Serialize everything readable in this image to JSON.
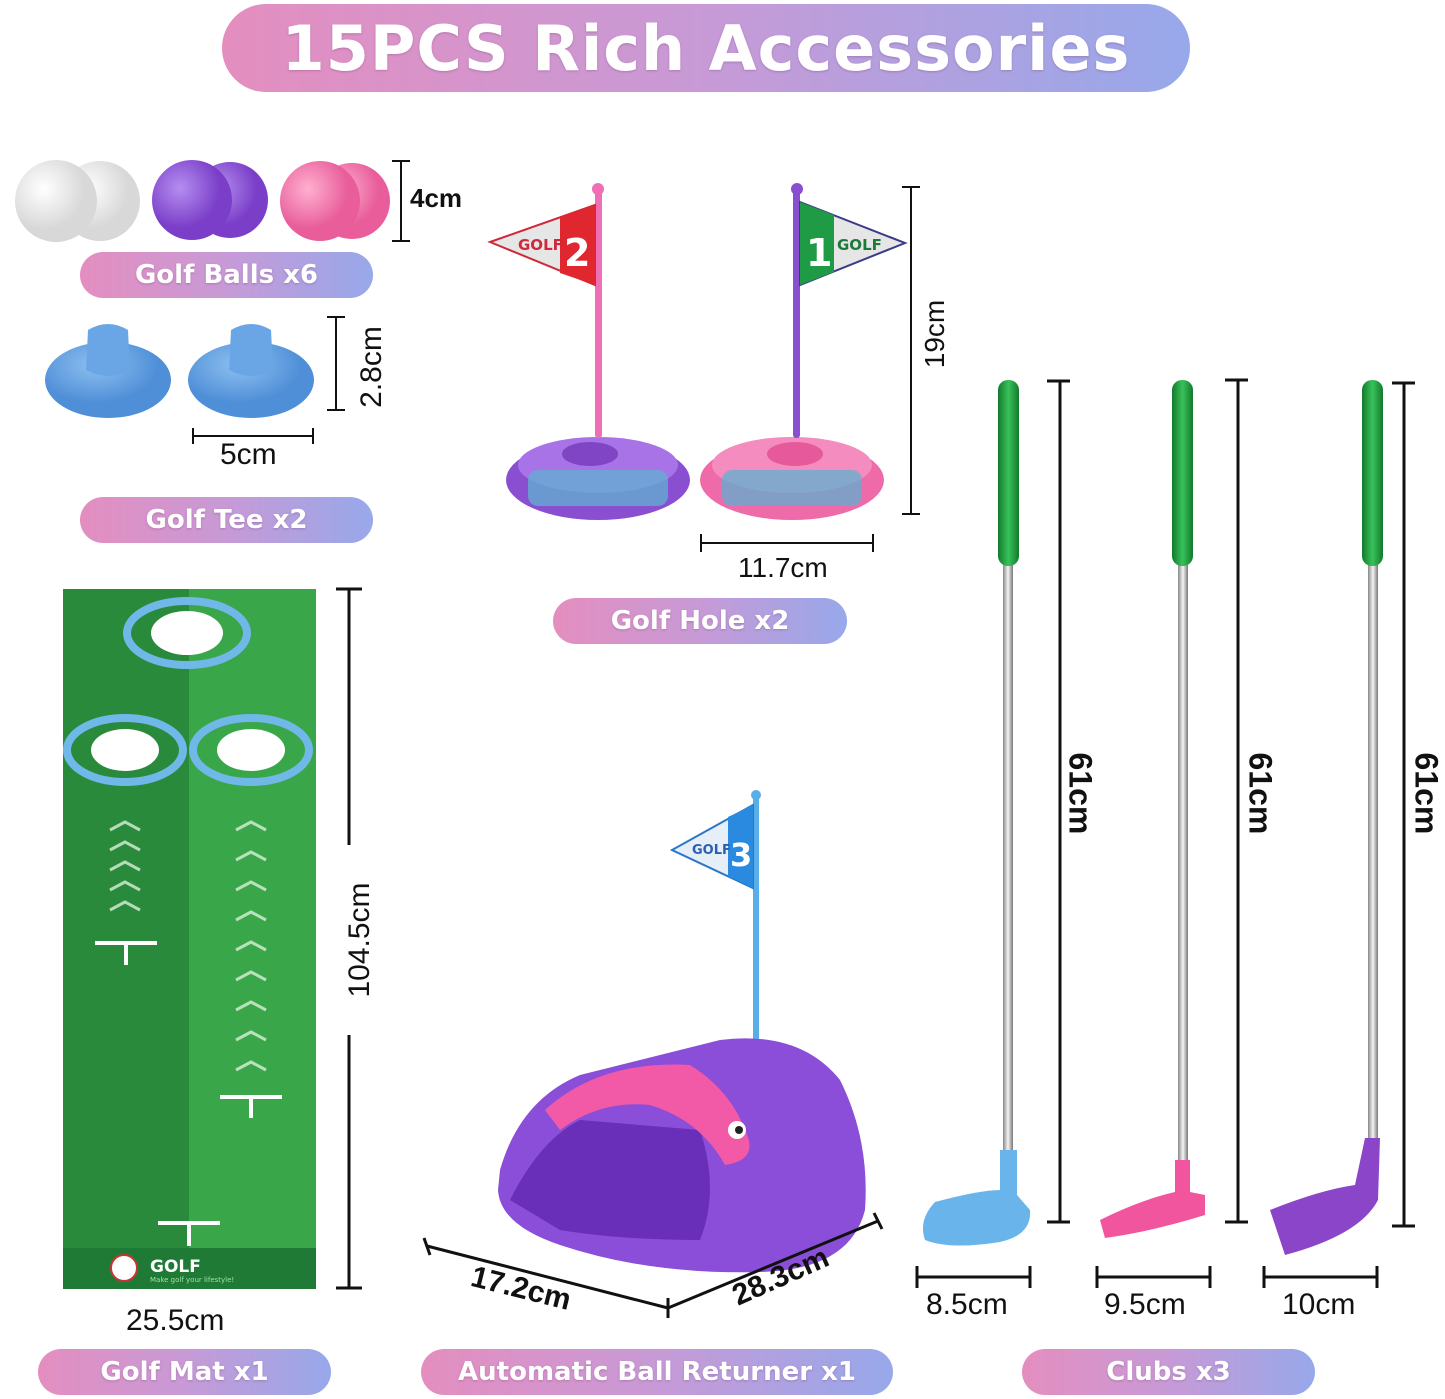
{
  "title": "15PCS Rich Accessories",
  "items": {
    "balls": {
      "label": "Golf Balls x6",
      "height": "4cm"
    },
    "tees": {
      "label": "Golf Tee x2",
      "height": "2.8cm",
      "width": "5cm"
    },
    "holes": {
      "label": "Golf Hole x2",
      "height": "19cm",
      "width": "11.7cm",
      "flag1_text": "GOLF",
      "flag1_number": "2",
      "flag2_text": "GOLF",
      "flag2_number": "1"
    },
    "mat": {
      "label": "Golf Mat x1",
      "length": "104.5cm",
      "width": "25.5cm",
      "logo_text": "GOLF",
      "logo_tagline": "Make golf your lifestyle!"
    },
    "returner": {
      "label": "Automatic Ball Returner x1",
      "depth": "17.2cm",
      "length": "28.3cm",
      "flag_text": "GOLF",
      "flag_number": "3"
    },
    "clubs": {
      "label": "Clubs x3",
      "lengths": [
        "61cm",
        "61cm",
        "61cm"
      ],
      "head_widths": [
        "8.5cm",
        "9.5cm",
        "10cm"
      ]
    }
  },
  "colors": {
    "pill_start": "#e48ebf",
    "pill_end": "#97a8ea",
    "mat_green": "#2e8b3a",
    "grip_green": "#1e9a3a",
    "purple": "#8a4fd0",
    "pink": "#ef6aa8",
    "blue": "#6aa6e0"
  }
}
